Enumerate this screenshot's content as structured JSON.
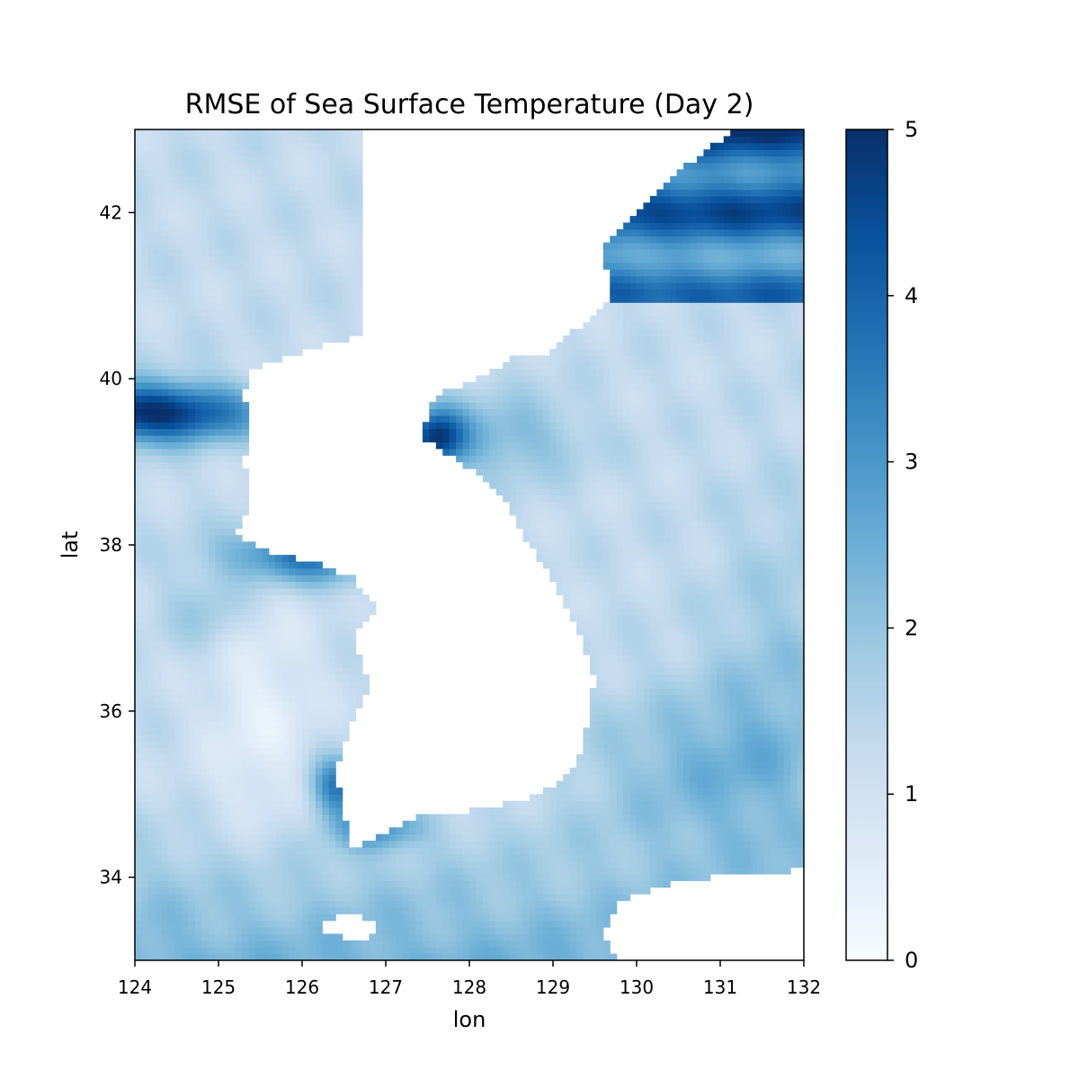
{
  "chart_data": {
    "type": "heatmap",
    "title": "RMSE of Sea Surface Temperature (Day 2)",
    "xlabel": "lon",
    "ylabel": "lat",
    "xlim": [
      124,
      132
    ],
    "ylim": [
      33,
      43
    ],
    "x_ticks": [
      124,
      125,
      126,
      127,
      128,
      129,
      130,
      131,
      132
    ],
    "y_ticks": [
      34,
      36,
      38,
      40,
      42
    ],
    "colorbar": {
      "colormap": "Blues",
      "vmin": 0,
      "vmax": 5,
      "ticks": [
        0,
        1,
        2,
        3,
        4,
        5
      ]
    },
    "land_color": "#ffffff",
    "colors": {
      "low": "#f7fbff",
      "high": "#08306b"
    }
  }
}
